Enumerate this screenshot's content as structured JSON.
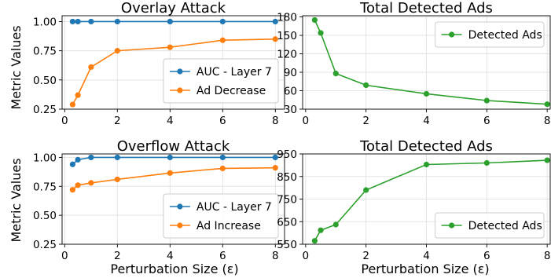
{
  "figure": {
    "left_ylabel_top": "Metric Values",
    "left_ylabel_bottom": "Metric Values",
    "xlabel_left": "Perturbation Size (ε)",
    "xlabel_right": "Perturbation Size (ε)"
  },
  "chart_data": [
    {
      "type": "line",
      "title": "Overlay Attack",
      "xlabel": "",
      "ylabel": "Metric Values",
      "xlim": [
        -0.1,
        8.35
      ],
      "ylim": [
        0.25,
        1.05
      ],
      "xticks": [
        0,
        2,
        4,
        6,
        8
      ],
      "yticks": [
        0.25,
        0.5,
        0.75,
        1.0
      ],
      "ytick_labels": [
        "0.25",
        "0.50",
        "0.75",
        "1.00"
      ],
      "grid": true,
      "legend_position": "lower-right",
      "series": [
        {
          "name": "AUC - Layer 7",
          "color": "#1f77b4",
          "x": [
            0.3,
            0.5,
            1,
            2,
            4,
            6,
            8
          ],
          "values": [
            1.0,
            1.0,
            1.0,
            1.0,
            1.0,
            1.0,
            1.0
          ]
        },
        {
          "name": "Ad Decrease",
          "color": "#ff7f0e",
          "x": [
            0.3,
            0.5,
            1,
            2,
            4,
            6,
            8
          ],
          "values": [
            0.29,
            0.37,
            0.61,
            0.75,
            0.78,
            0.84,
            0.85
          ]
        }
      ]
    },
    {
      "type": "line",
      "title": "Total Detected Ads",
      "xlabel": "",
      "ylabel": "",
      "xlim": [
        -0.1,
        8.1
      ],
      "ylim": [
        30,
        182
      ],
      "xticks": [
        0,
        2,
        4,
        6,
        8
      ],
      "yticks": [
        30,
        60,
        90,
        120,
        150,
        180
      ],
      "ytick_labels": [
        "30",
        "60",
        "90",
        "120",
        "150",
        "180"
      ],
      "grid": true,
      "legend_position": "top-right",
      "series": [
        {
          "name": "Detected Ads",
          "color": "#2ca02c",
          "x": [
            0.3,
            0.5,
            1,
            2,
            4,
            6,
            8
          ],
          "values": [
            175,
            154,
            88,
            69,
            55,
            44,
            38
          ]
        }
      ]
    },
    {
      "type": "line",
      "title": "Overflow Attack",
      "xlabel": "Perturbation Size (ε)",
      "ylabel": "Metric Values",
      "xlim": [
        -0.1,
        8.35
      ],
      "ylim": [
        0.25,
        1.03
      ],
      "xticks": [
        0,
        2,
        4,
        6,
        8
      ],
      "yticks": [
        0.25,
        0.5,
        0.75,
        1.0
      ],
      "ytick_labels": [
        "0.25",
        "0.50",
        "0.75",
        "1.00"
      ],
      "grid": true,
      "legend_position": "lower-right",
      "series": [
        {
          "name": "AUC - Layer 7",
          "color": "#1f77b4",
          "x": [
            0.3,
            0.5,
            1,
            2,
            4,
            6,
            8
          ],
          "values": [
            0.94,
            0.98,
            1.0,
            1.0,
            1.0,
            1.0,
            1.0
          ]
        },
        {
          "name": "Ad Increase",
          "color": "#ff7f0e",
          "x": [
            0.3,
            0.5,
            1,
            2,
            4,
            6,
            8
          ],
          "values": [
            0.72,
            0.76,
            0.78,
            0.81,
            0.865,
            0.905,
            0.91
          ]
        }
      ]
    },
    {
      "type": "line",
      "title": "Total Detected Ads",
      "xlabel": "Perturbation Size (ε)",
      "ylabel": "",
      "xlim": [
        -0.1,
        8.1
      ],
      "ylim": [
        550,
        950
      ],
      "xticks": [
        0,
        2,
        4,
        6,
        8
      ],
      "yticks": [
        550,
        650,
        750,
        850,
        950
      ],
      "ytick_labels": [
        "550",
        "650",
        "750",
        "850",
        "950"
      ],
      "grid": true,
      "legend_position": "lower-right",
      "series": [
        {
          "name": "Detected Ads",
          "color": "#2ca02c",
          "x": [
            0.3,
            0.5,
            1,
            2,
            4,
            6,
            8
          ],
          "values": [
            565,
            612,
            637,
            790,
            903,
            910,
            922
          ]
        }
      ]
    }
  ]
}
